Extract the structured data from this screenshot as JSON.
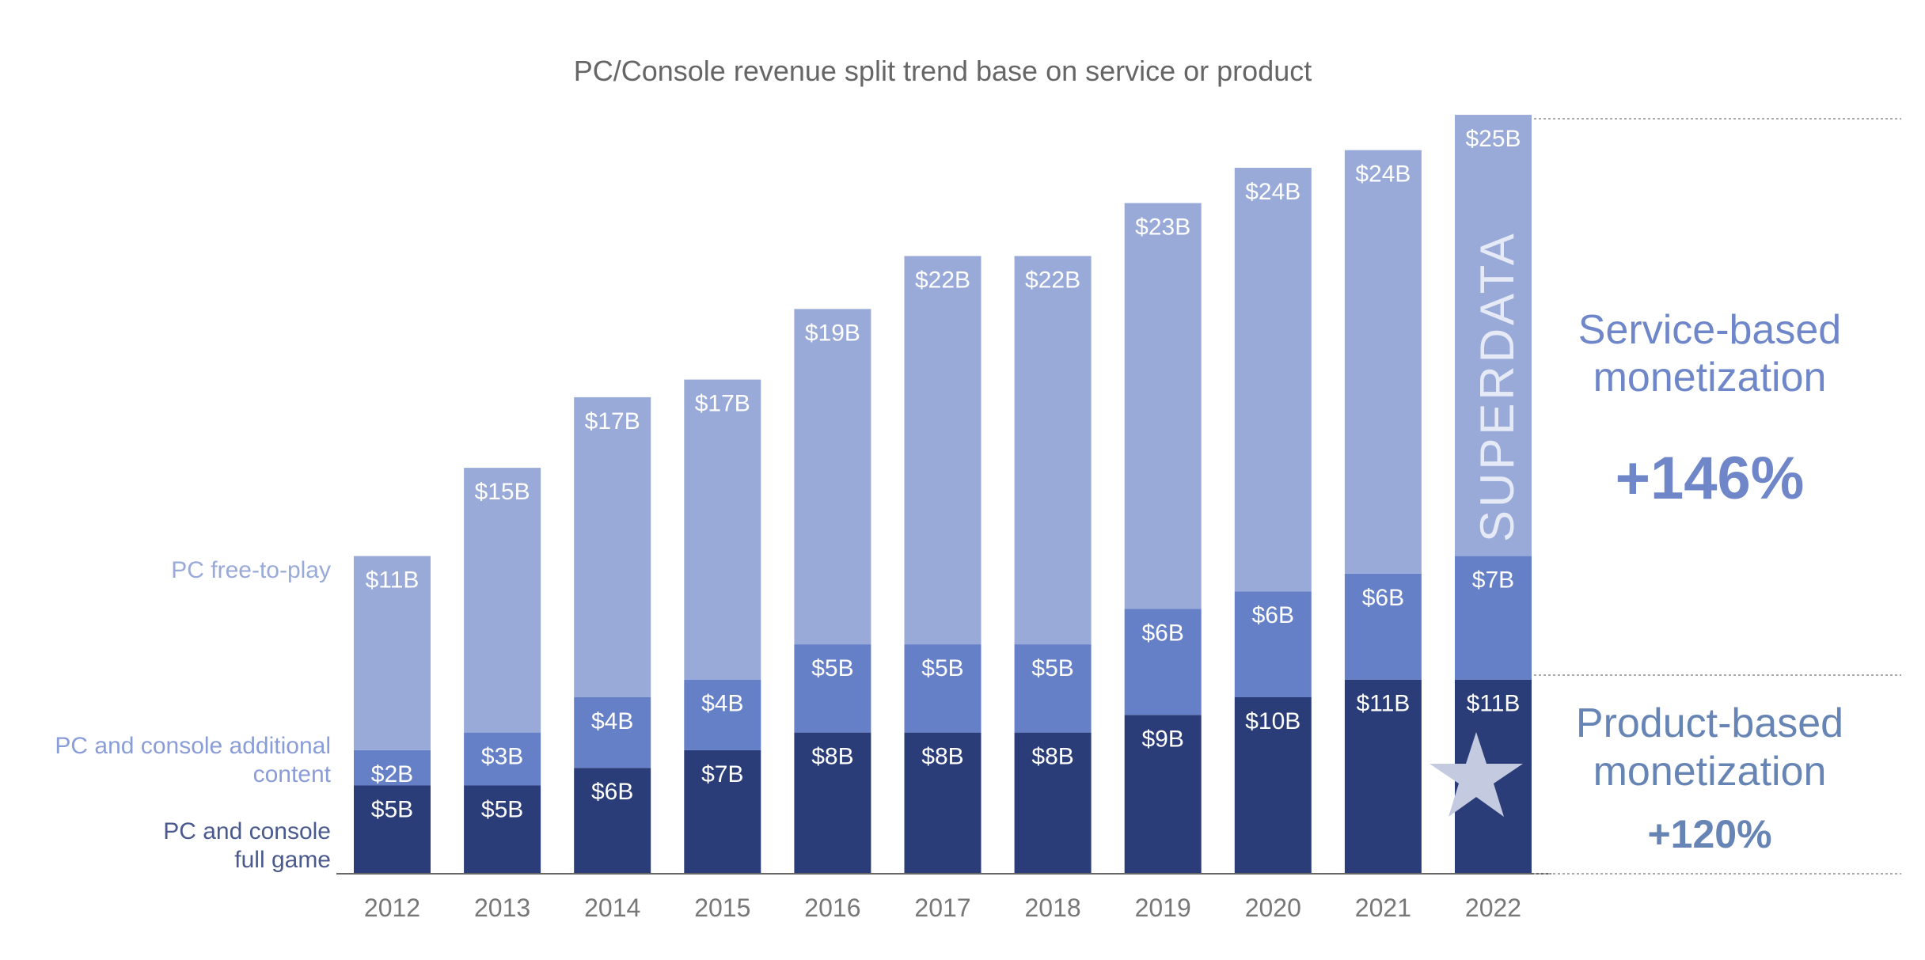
{
  "chart_data": {
    "type": "bar",
    "stacked": true,
    "title": "PC/Console revenue split trend base on service or product",
    "xlabel": "",
    "ylabel": "",
    "grid": false,
    "legend_position": "left",
    "value_unit_prefix": "$",
    "value_unit_suffix": "B",
    "categories": [
      "2012",
      "2013",
      "2014",
      "2015",
      "2016",
      "2017",
      "2018",
      "2019",
      "2020",
      "2021",
      "2022"
    ],
    "series": [
      {
        "name": "PC and console full game",
        "label_lines": [
          "PC and console",
          "full game"
        ],
        "color": "#2b3d78",
        "values": [
          5,
          5,
          6,
          7,
          8,
          8,
          8,
          9,
          10,
          11,
          11
        ]
      },
      {
        "name": "PC and console additional content",
        "label_lines": [
          "PC and console additional",
          "content"
        ],
        "color": "#6680c8",
        "values": [
          2,
          3,
          4,
          4,
          5,
          5,
          5,
          6,
          6,
          6,
          7
        ]
      },
      {
        "name": "PC free-to-play",
        "label_lines": [
          "PC free-to-play"
        ],
        "color": "#99aad9",
        "values": [
          11,
          15,
          17,
          17,
          19,
          22,
          22,
          23,
          24,
          24,
          25
        ]
      }
    ],
    "annotations": {
      "service": {
        "lines": [
          "Service-based",
          "monetization"
        ],
        "change": "+146%",
        "color": "#6f87c9"
      },
      "product": {
        "lines": [
          "Product-based",
          "monetization"
        ],
        "change": "+120%",
        "color": "#6685b5"
      }
    }
  },
  "watermark": "SUPERDATA"
}
